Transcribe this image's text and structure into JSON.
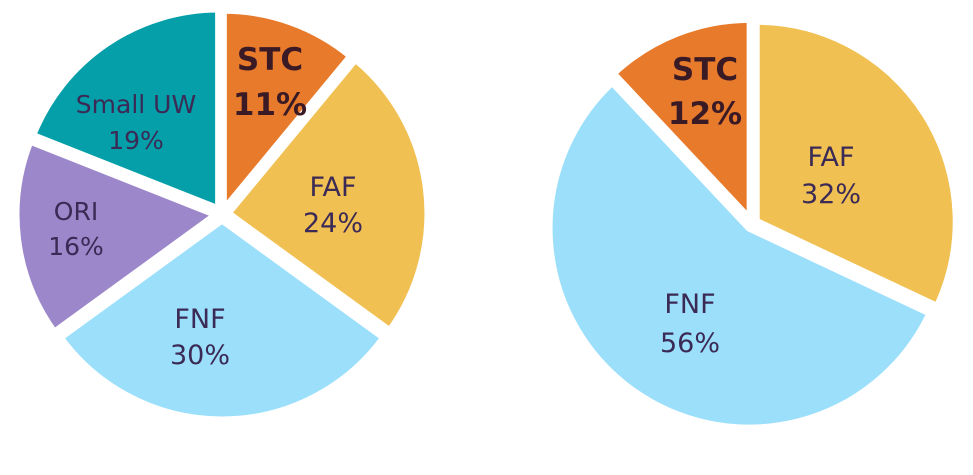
{
  "chart_data": [
    {
      "type": "pie",
      "categories": [
        "STC",
        "FAF",
        "FNF",
        "ORI",
        "Small UW"
      ],
      "values": [
        11,
        24,
        30,
        16,
        19
      ],
      "labels": [
        "11%",
        "24%",
        "30%",
        "16%",
        "19%"
      ],
      "colors": [
        "#E87A2C",
        "#F1C052",
        "#9BDFFB",
        "#9B87C9",
        "#049FA8"
      ],
      "emphasis": [
        "STC"
      ],
      "start": "top, clockwise"
    },
    {
      "type": "pie",
      "categories": [
        "FAF",
        "FNF",
        "STC"
      ],
      "values": [
        32,
        56,
        12
      ],
      "labels": [
        "32%",
        "56%",
        "12%"
      ],
      "colors": [
        "#F1C052",
        "#9BDFFB",
        "#E87A2C"
      ],
      "emphasis": [
        "STC"
      ],
      "start": "top, clockwise"
    }
  ]
}
